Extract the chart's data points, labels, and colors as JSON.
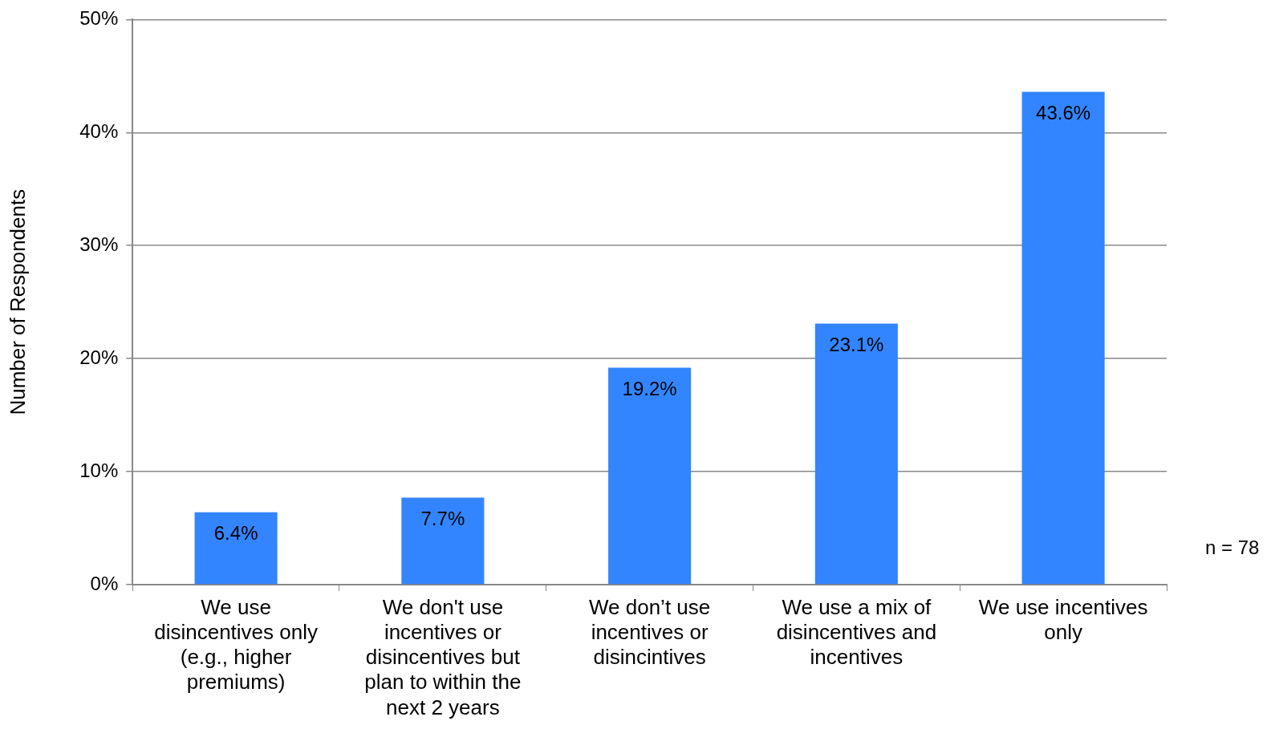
{
  "chart_data": {
    "type": "bar",
    "ylabel": "Number of Respondents",
    "categories": [
      "We use disincentives only (e.g., higher premiums)",
      "We don't use incentives or disincentives but plan to within the next 2 years",
      "We don’t use incentives or disincintives",
      "We use a mix of disincentives and incentives",
      "We use incentives only"
    ],
    "values": [
      6.4,
      7.7,
      19.2,
      23.1,
      43.6
    ],
    "value_labels": [
      "6.4%",
      "7.7%",
      "19.2%",
      "23.1%",
      "43.6%"
    ],
    "color": "#3385ff",
    "ylim": [
      0,
      50
    ],
    "yticks": [
      {
        "value": 0,
        "label": "0%"
      },
      {
        "value": 10,
        "label": "10%"
      },
      {
        "value": 20,
        "label": "20%"
      },
      {
        "value": 30,
        "label": "30%"
      },
      {
        "value": 40,
        "label": "40%"
      },
      {
        "value": 50,
        "label": "50%"
      }
    ],
    "grid": "y",
    "annotations": [
      "n = 78"
    ]
  }
}
